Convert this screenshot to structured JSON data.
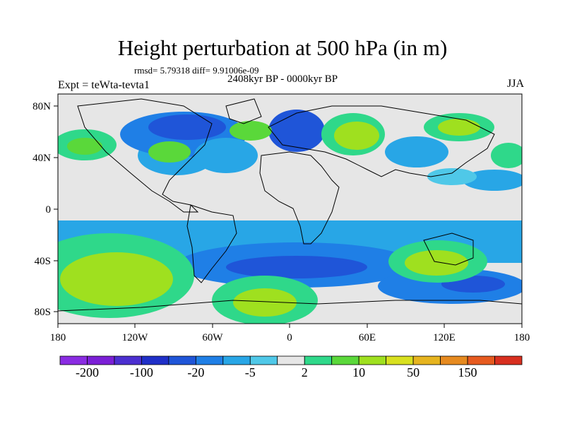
{
  "title": "Height perturbation at 500 hPa (in m)",
  "stats_line": "rmsd= 5.79318 diff= 9.91006e-09",
  "period": "2408kyr BP - 0000kyr BP",
  "experiment": "Expt = teWta-tevta1",
  "season": "JJA",
  "lat_ticks": [
    "80N",
    "40N",
    "0",
    "40S",
    "80S"
  ],
  "lon_ticks": [
    "180",
    "120W",
    "60W",
    "0",
    "60E",
    "120E",
    "180"
  ],
  "colorbar": {
    "colors": [
      "#8a2be2",
      "#7b1fd6",
      "#4b2fd0",
      "#1f2fc8",
      "#1f55d8",
      "#1f7fe6",
      "#28a6e6",
      "#4fc8e8",
      "#e6e6e6",
      "#2fd88a",
      "#5ad83a",
      "#9fe01f",
      "#d8e01f",
      "#e6b41f",
      "#e68a1f",
      "#e65a1f",
      "#d82f1f"
    ],
    "labels": [
      "-200",
      "-100",
      "-20",
      "-5",
      "2",
      "10",
      "50",
      "150"
    ]
  },
  "palette": {
    "neg_dark": "#1f2fc8",
    "neg_mid": "#28a6e6",
    "neg_light": "#4fc8e8",
    "neutral": "#e6e6e6",
    "pos_light": "#2fd88a",
    "pos_mid": "#5ad83a",
    "pos_strong": "#9fe01f"
  }
}
